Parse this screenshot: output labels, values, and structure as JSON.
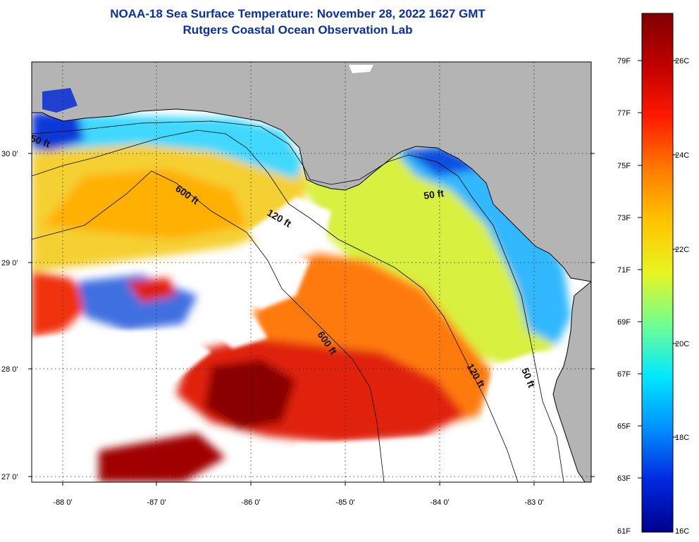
{
  "header": {
    "title_line1": "NOAA-18 Sea Surface Temperature:  November 28, 2022 1627 GMT",
    "title_line2": "Rutgers Coastal Ocean Observation Lab"
  },
  "map": {
    "lat_labels": [
      "30 0'",
      "29 0'",
      "28 0'",
      "27 0'"
    ],
    "lon_labels": [
      "-88 0'",
      "-87 0'",
      "-86 0'",
      "-85 0'",
      "-84 0'",
      "-83 0'"
    ],
    "contours": [
      {
        "text": "50 ft"
      },
      {
        "text": "600 ft"
      },
      {
        "text": "120 ft"
      },
      {
        "text": "50 ft"
      },
      {
        "text": "600 ft"
      },
      {
        "text": "120 ft"
      },
      {
        "text": "50 ft"
      }
    ],
    "colors": {
      "land": "#b4b4b4",
      "cloud": "#ffffff",
      "coast": "#000000"
    }
  },
  "colorbar": {
    "f_labels": [
      "79F",
      "77F",
      "75F",
      "73F",
      "71F",
      "69F",
      "67F",
      "65F",
      "63F",
      "61F"
    ],
    "c_labels": [
      "26C",
      "24C",
      "22C",
      "20C",
      "18C",
      "16C"
    ]
  }
}
